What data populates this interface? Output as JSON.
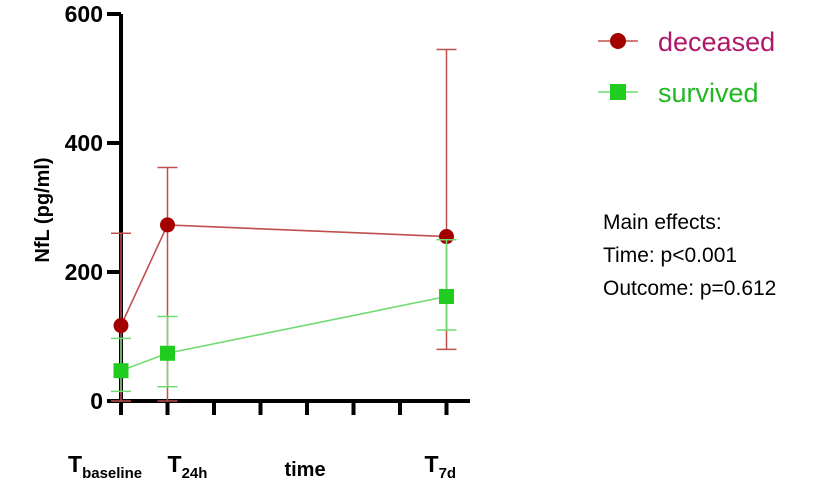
{
  "chart_data": {
    "type": "line",
    "ylabel": "NfL (pg/ml)",
    "xlabel": "time",
    "ylim": [
      0,
      600
    ],
    "yticks": [
      0,
      200,
      400,
      600
    ],
    "categories": [
      {
        "main": "T",
        "sub": "baseline"
      },
      {
        "main": "T",
        "sub": "24h"
      },
      {
        "main": "T",
        "sub": "7d"
      }
    ],
    "x": [
      0,
      1,
      7
    ],
    "series": [
      {
        "name": "deceased",
        "color": "#a50000",
        "line_color": "#c0504d",
        "label_color": "#b0186a",
        "marker": "circle",
        "values": [
          117,
          273,
          255
        ],
        "error_upper": [
          260,
          362,
          545
        ],
        "error_lower": [
          0,
          0,
          80
        ]
      },
      {
        "name": "survived",
        "color": "#1fcc1f",
        "line_color": "#70dc70",
        "label_color": "#22b822",
        "marker": "square",
        "values": [
          47,
          74,
          162
        ],
        "error_upper": [
          97,
          131,
          250
        ],
        "error_lower": [
          15,
          22,
          110
        ]
      }
    ],
    "annotation": {
      "title": "Main effects:",
      "lines": [
        "Time: p<0.001",
        "Outcome: p=0.612"
      ]
    },
    "legend_position": "top-right"
  }
}
